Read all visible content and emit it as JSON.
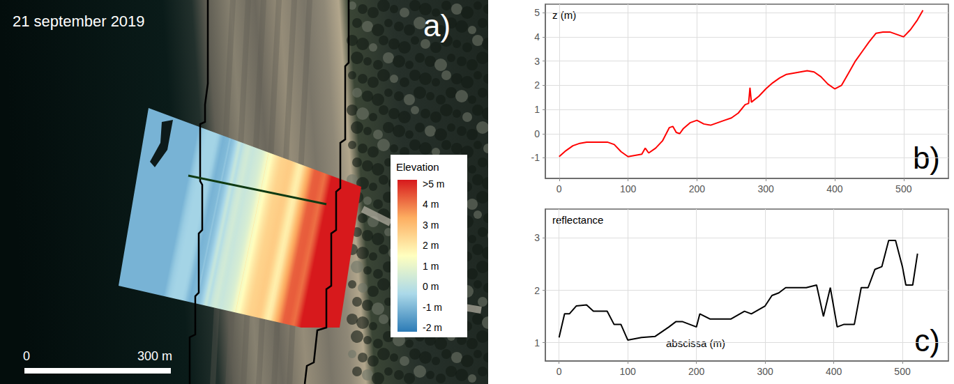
{
  "map": {
    "date": "21 september 2019",
    "panel_label": "a)",
    "colorbar": {
      "title": "Elevation",
      "range": [
        -2,
        5
      ],
      "ticks": [
        {
          "value": 5,
          "label": ">5 m"
        },
        {
          "value": 4,
          "label": "4 m"
        },
        {
          "value": 3,
          "label": "3 m"
        },
        {
          "value": 2,
          "label": "2 m"
        },
        {
          "value": 1,
          "label": "1 m"
        },
        {
          "value": 0,
          "label": "0 m"
        },
        {
          "value": -1,
          "label": "-1 m"
        },
        {
          "value": -2,
          "label": "-2 m"
        }
      ],
      "colors": [
        "#2c7bb6",
        "#abd9e9",
        "#ffffbf",
        "#fdae61",
        "#d7191c"
      ]
    },
    "scale_bar": {
      "ticks": [
        {
          "value": 0,
          "label": "0"
        },
        {
          "value": 300,
          "label": "300 m"
        }
      ]
    }
  },
  "chart_data": [
    {
      "type": "line",
      "panel_label": "b)",
      "y_label": "z (m)",
      "color": "#ff0000",
      "grid": true,
      "x": [
        0,
        10,
        20,
        30,
        40,
        50,
        60,
        70,
        80,
        90,
        100,
        110,
        120,
        125,
        130,
        140,
        150,
        160,
        165,
        170,
        175,
        180,
        190,
        200,
        210,
        220,
        230,
        240,
        250,
        260,
        270,
        275,
        277,
        279,
        290,
        300,
        310,
        320,
        330,
        340,
        350,
        360,
        370,
        380,
        390,
        400,
        410,
        420,
        430,
        440,
        450,
        460,
        470,
        480,
        490,
        500,
        510,
        520,
        528
      ],
      "values": [
        -0.95,
        -0.7,
        -0.5,
        -0.4,
        -0.35,
        -0.35,
        -0.35,
        -0.35,
        -0.45,
        -0.75,
        -0.95,
        -0.9,
        -0.85,
        -0.6,
        -0.8,
        -0.6,
        -0.3,
        0.25,
        0.3,
        0.05,
        0,
        0.2,
        0.45,
        0.55,
        0.4,
        0.35,
        0.45,
        0.55,
        0.65,
        0.85,
        1.2,
        1.25,
        1.9,
        1.3,
        1.55,
        1.85,
        2.1,
        2.3,
        2.45,
        2.5,
        2.55,
        2.6,
        2.55,
        2.35,
        2.05,
        1.85,
        2,
        2.5,
        3,
        3.4,
        3.8,
        4.15,
        4.2,
        4.2,
        4.1,
        4,
        4.3,
        4.7,
        5.1
      ],
      "xlim": [
        -20,
        565
      ],
      "xticks": [
        0,
        100,
        200,
        300,
        400,
        500
      ],
      "ylim": [
        -1.85,
        5.35
      ],
      "yticks": [
        -1,
        0,
        1,
        2,
        3,
        4,
        5
      ]
    },
    {
      "type": "line",
      "panel_label": "c)",
      "y_label": "reflectance",
      "x_label": "abscissa (m)",
      "color": "#000000",
      "grid": true,
      "x": [
        0,
        8,
        15,
        25,
        40,
        50,
        70,
        80,
        90,
        100,
        120,
        140,
        160,
        170,
        180,
        190,
        200,
        205,
        220,
        250,
        270,
        280,
        300,
        310,
        320,
        330,
        360,
        375,
        385,
        395,
        405,
        415,
        430,
        440,
        450,
        460,
        470,
        480,
        490,
        500,
        505,
        515,
        522
      ],
      "values": [
        1.1,
        1.55,
        1.55,
        1.7,
        1.72,
        1.6,
        1.6,
        1.35,
        1.35,
        1.05,
        1.1,
        1.12,
        1.3,
        1.4,
        1.4,
        1.35,
        1.3,
        1.55,
        1.45,
        1.45,
        1.6,
        1.55,
        1.7,
        1.9,
        1.95,
        2.05,
        2.05,
        2.1,
        1.5,
        2.05,
        1.3,
        1.35,
        1.35,
        2.05,
        2.05,
        2.4,
        2.45,
        2.95,
        2.95,
        2.45,
        2.1,
        2.1,
        2.7
      ],
      "xlim": [
        -20,
        567
      ],
      "xticks": [
        0,
        100,
        200,
        300,
        400,
        500
      ],
      "ylim": [
        0.65,
        3.55
      ],
      "yticks": [
        1,
        2,
        3
      ]
    }
  ]
}
